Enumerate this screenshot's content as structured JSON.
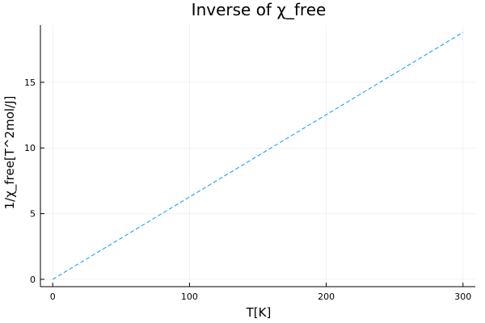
{
  "chart_data": {
    "type": "line",
    "title": "Inverse of χ_free",
    "xlabel": "T[K]",
    "ylabel": "1/χ_free[T^2mol/J]",
    "xlim": [
      -9,
      309
    ],
    "ylim": [
      -0.56,
      19.36
    ],
    "xticks": [
      0,
      100,
      200,
      300
    ],
    "yticks": [
      0,
      5,
      10,
      15
    ],
    "grid": true,
    "legend": "none",
    "series": [
      {
        "color": "#009af9",
        "style": "dashed",
        "x": [
          0,
          300
        ],
        "y": [
          0,
          18.8
        ]
      }
    ]
  }
}
